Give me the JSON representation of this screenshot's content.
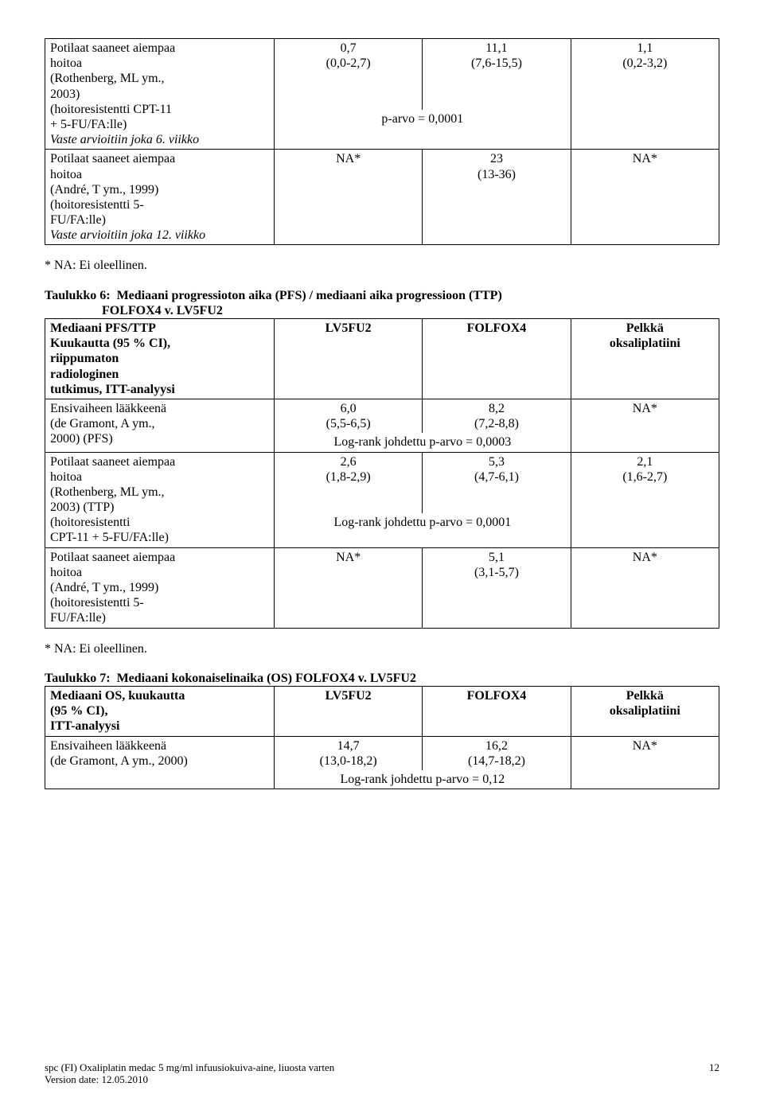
{
  "table5": {
    "rows": [
      {
        "label_lines": [
          "Potilaat saaneet aiempaa",
          "hoitoa",
          "(Rothenberg, ML ym.,",
          "2003)",
          "(hoitoresistentti CPT-11",
          "+ 5-FU/FA:lle)"
        ],
        "label_tail_italic": "Vaste arvioitiin joka 6. viikko",
        "v1": "0,7",
        "v1ci": "(0,0-2,7)",
        "v2": "11,1",
        "v2ci": "(7,6-15,5)",
        "v3": "1,1",
        "v3ci": "(0,2-3,2)",
        "span": "p-arvo = 0,0001"
      },
      {
        "label_lines": [
          "Potilaat saaneet aiempaa",
          "hoitoa",
          "(André, T ym., 1999)",
          "(hoitoresistentti 5-",
          "FU/FA:lle)"
        ],
        "label_tail_italic": "Vaste arvioitiin joka 12. viikko",
        "v1": "NA*",
        "v1ci": "",
        "v2": "23",
        "v2ci": "(13-36)",
        "v3": "NA*",
        "v3ci": ""
      }
    ],
    "footnote": "* NA: Ei oleellinen."
  },
  "table6": {
    "title_a": "Taulukko 6:",
    "title_b": "Mediaani progressioton aika (PFS) / mediaani aika progressioon (TTP)",
    "title_c": "FOLFOX4 v. LV5FU2",
    "h0a": "Mediaani PFS/TTP",
    "h0b": "Kuukautta (95 % CI),",
    "h0c": "riippumaton",
    "h0d": "radiologinen",
    "h0e": "tutkimus, ITT-analyysi",
    "h1": "LV5FU2",
    "h2": "FOLFOX4",
    "h3": "Pelkkä",
    "h3b": "oksaliplatiini",
    "rows": [
      {
        "label_lines": [
          "Ensivaiheen lääkkeenä",
          "(de Gramont, A ym.,",
          "2000) (PFS)"
        ],
        "v1": "6,0",
        "v1ci": "(5,5-6,5)",
        "v2": "8,2",
        "v2ci": "(7,2-8,8)",
        "v3": "NA*",
        "v3ci": "",
        "span": "Log-rank johdettu p-arvo = 0,0003"
      },
      {
        "label_lines": [
          "Potilaat saaneet aiempaa",
          "hoitoa",
          "(Rothenberg, ML ym.,",
          "2003) (TTP)",
          "(hoitoresistentti",
          "CPT-11 + 5-FU/FA:lle)"
        ],
        "v1": "2,6",
        "v1ci": "(1,8-2,9)",
        "v2": "5,3",
        "v2ci": "(4,7-6,1)",
        "v3": "2,1",
        "v3ci": "(1,6-2,7)",
        "span": "Log-rank johdettu p-arvo = 0,0001"
      },
      {
        "label_lines": [
          "Potilaat saaneet aiempaa",
          "hoitoa",
          "(André, T ym., 1999)",
          "(hoitoresistentti 5-",
          "FU/FA:lle)"
        ],
        "v1": "NA*",
        "v1ci": "",
        "v2": "5,1",
        "v2ci": "(3,1-5,7)",
        "v3": "NA*",
        "v3ci": ""
      }
    ],
    "footnote": "* NA: Ei oleellinen."
  },
  "table7": {
    "title_a": "Taulukko 7:",
    "title_b": "Mediaani kokonaiselinaika (OS) FOLFOX4 v. LV5FU2",
    "h0a": "Mediaani OS, kuukautta",
    "h0b": "(95 % CI),",
    "h0c": "ITT-analyysi",
    "h1": "LV5FU2",
    "h2": "FOLFOX4",
    "h3": "Pelkkä",
    "h3b": "oksaliplatiini",
    "rows": [
      {
        "label_lines": [
          "Ensivaiheen lääkkeenä",
          "(de Gramont, A ym., 2000)"
        ],
        "v1": "14,7",
        "v1ci": "(13,0-18,2)",
        "v2": "16,2",
        "v2ci": "(14,7-18,2)",
        "v3": "NA*",
        "v3ci": "",
        "span": "Log-rank johdettu p-arvo = 0,12"
      }
    ]
  },
  "footer": {
    "line1": "spc (FI) Oxaliplatin medac 5 mg/ml infuusiokuiva-aine, liuosta varten",
    "line2": "Version date: 12.05.2010",
    "page": "12"
  }
}
